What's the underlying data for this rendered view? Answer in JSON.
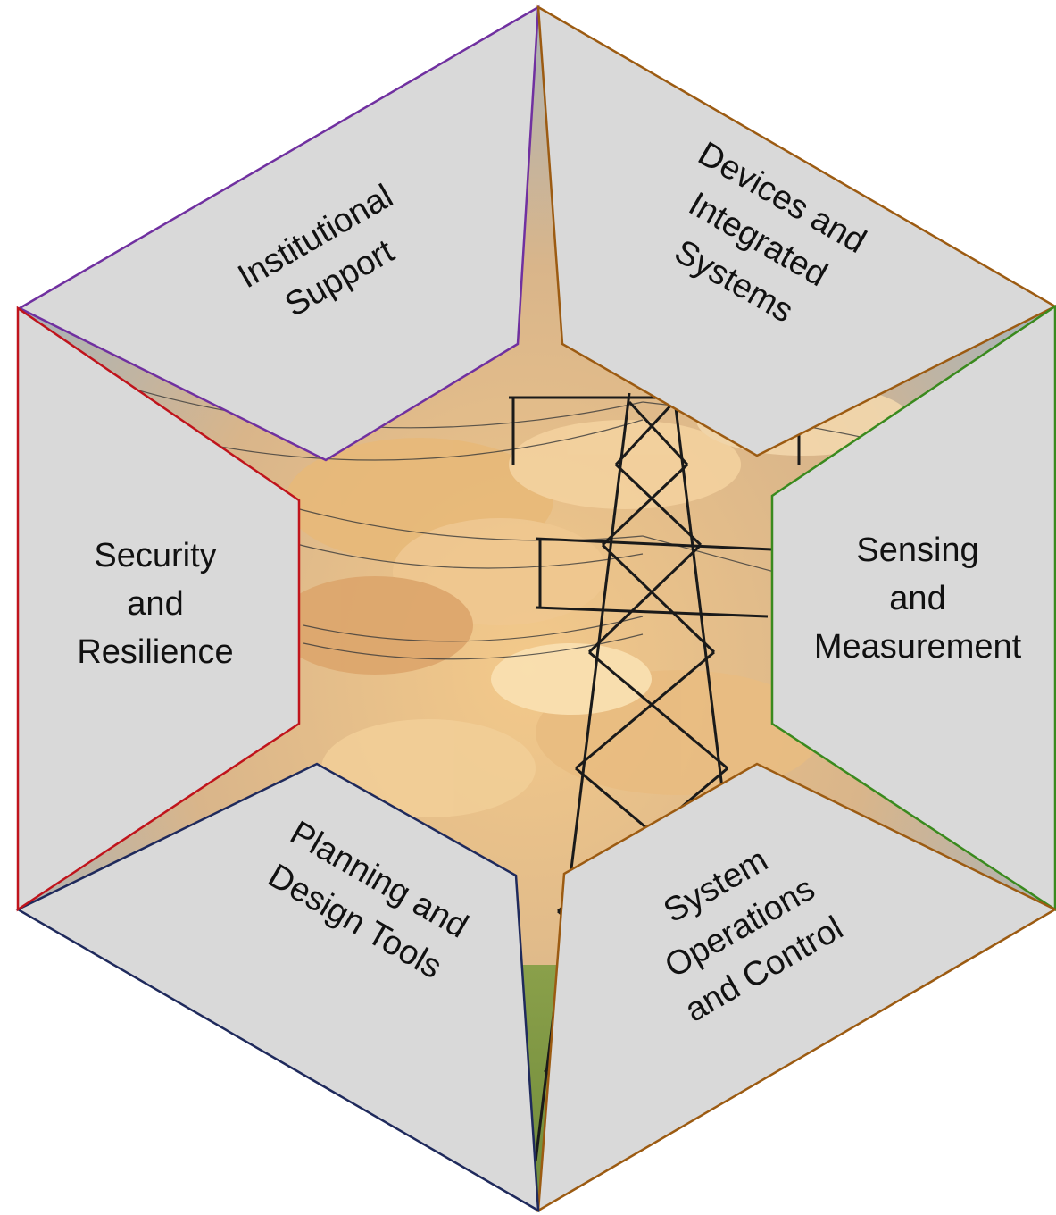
{
  "segments": [
    {
      "id": "institutional-support",
      "lines": [
        "Institutional",
        "Support"
      ],
      "border_color": "#7030a0"
    },
    {
      "id": "devices-and-integrated-systems",
      "lines": [
        "Devices and",
        "Integrated",
        "Systems"
      ],
      "border_color": "#9c5b12"
    },
    {
      "id": "sensing-and-measurement",
      "lines": [
        "Sensing",
        "and",
        "Measurement"
      ],
      "border_color": "#3a8a1e"
    },
    {
      "id": "system-operations-and-control",
      "lines": [
        "System",
        "Operations",
        "and Control"
      ],
      "border_color": "#9c5b12"
    },
    {
      "id": "planning-and-design-tools",
      "lines": [
        "Planning and",
        "Design Tools"
      ],
      "border_color": "#1f2a5c"
    },
    {
      "id": "security-and-resilience",
      "lines": [
        "Security",
        "and",
        "Resilience"
      ],
      "border_color": "#c0141c"
    }
  ],
  "colors": {
    "segment_fill": "#d9d9d9",
    "sky_top": "#9fb3c2",
    "sky_glow": "#f3c98a",
    "cloud": "#e8b978",
    "tower": "#1a1a1a",
    "ground": "#6f8a3a"
  },
  "background_image": "transmission-tower-at-sunset"
}
